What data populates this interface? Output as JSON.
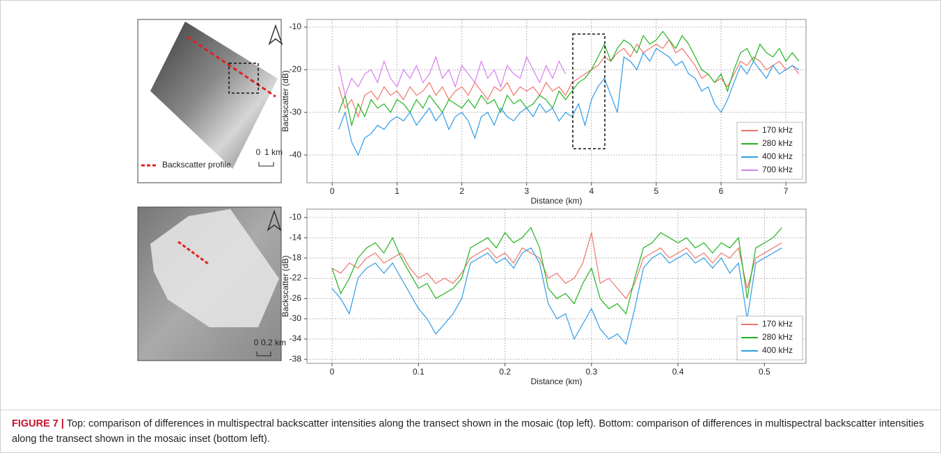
{
  "figure": {
    "caption_label": "FIGURE 7 |",
    "caption": "Top: comparison of differences in multispectral backscatter intensities along the transect shown in the mosaic (top left). Bottom: comparison of differences in multispectral backscatter intensities along the transect shown in the mosaic inset (bottom left).",
    "mosaics": [
      {
        "legend": "Backscatter profile",
        "scale_zero": "0",
        "scale_label": "1 km"
      },
      {
        "scale_zero": "0",
        "scale_label": "0.2 km"
      }
    ]
  },
  "chart_data": [
    {
      "type": "line",
      "x_label": "Distance (km)",
      "y_label": "Backscatter (dB)",
      "xlim": [
        -0.39,
        7.31
      ],
      "ylim": [
        -46.5,
        -8.2
      ],
      "xticks": [
        0,
        1,
        2,
        3,
        4,
        5,
        6,
        7
      ],
      "yticks": [
        -10,
        -20,
        -30,
        -40
      ],
      "grid": true,
      "legend": "lower right",
      "x": [
        0.1,
        0.2,
        0.3,
        0.4,
        0.5,
        0.6,
        0.7,
        0.8,
        0.9,
        1.0,
        1.1,
        1.2,
        1.3,
        1.4,
        1.5,
        1.6,
        1.7,
        1.8,
        1.9,
        2.0,
        2.1,
        2.2,
        2.3,
        2.4,
        2.5,
        2.6,
        2.7,
        2.8,
        2.9,
        3.0,
        3.1,
        3.2,
        3.3,
        3.4,
        3.5,
        3.6,
        3.7,
        3.8,
        3.9,
        4.0,
        4.1,
        4.2,
        4.3,
        4.4,
        4.5,
        4.6,
        4.7,
        4.8,
        4.9,
        5.0,
        5.1,
        5.2,
        5.3,
        5.4,
        5.5,
        5.6,
        5.7,
        5.8,
        5.9,
        6.0,
        6.1,
        6.2,
        6.3,
        6.4,
        6.5,
        6.6,
        6.7,
        6.8,
        6.9,
        7.0,
        7.1,
        7.2
      ],
      "series": [
        {
          "name": "170 kHz",
          "color": "#f0756a",
          "values": [
            -24,
            -29,
            -27,
            -31,
            -26,
            -25,
            -27,
            -24,
            -26,
            -25,
            -27,
            -24,
            -26,
            -25,
            -23,
            -26,
            -24,
            -27,
            -25,
            -24,
            -26,
            -23,
            -25,
            -27,
            -24,
            -25,
            -23,
            -26,
            -24,
            -25,
            -24,
            -26,
            -23,
            -25,
            -24,
            -26,
            -23,
            -22,
            -21,
            -20,
            -19,
            -17,
            -18,
            -16,
            -15,
            -17,
            -14,
            -16,
            -15,
            -14,
            -15,
            -13,
            -16,
            -15,
            -17,
            -19,
            -22,
            -21,
            -23,
            -22,
            -24,
            -21,
            -18,
            -19,
            -17,
            -18,
            -20,
            -19,
            -18,
            -20,
            -19,
            -21
          ]
        },
        {
          "name": "280 kHz",
          "color": "#1fb41f",
          "values": [
            -30,
            -26,
            -33,
            -28,
            -31,
            -27,
            -29,
            -28,
            -30,
            -27,
            -28,
            -30,
            -27,
            -29,
            -26,
            -28,
            -30,
            -27,
            -28,
            -29,
            -27,
            -29,
            -26,
            -28,
            -27,
            -30,
            -26,
            -28,
            -27,
            -29,
            -28,
            -26,
            -27,
            -29,
            -25,
            -27,
            -25,
            -23,
            -22,
            -20,
            -17,
            -14,
            -18,
            -15,
            -13,
            -14,
            -16,
            -12,
            -14,
            -13,
            -11,
            -13,
            -15,
            -12,
            -14,
            -17,
            -20,
            -21,
            -23,
            -21,
            -25,
            -20,
            -16,
            -15,
            -18,
            -14,
            -16,
            -17,
            -15,
            -18,
            -16,
            -18
          ]
        },
        {
          "name": "400 kHz",
          "color": "#2e9be8",
          "values": [
            -34,
            -30,
            -37,
            -40,
            -36,
            -35,
            -33,
            -34,
            -32,
            -31,
            -32,
            -30,
            -33,
            -31,
            -29,
            -32,
            -30,
            -34,
            -31,
            -30,
            -32,
            -36,
            -31,
            -30,
            -33,
            -29,
            -31,
            -32,
            -30,
            -29,
            -31,
            -28,
            -30,
            -29,
            -32,
            -30,
            -31,
            -28,
            -33,
            -27,
            -24,
            -22,
            -26,
            -30,
            -17,
            -18,
            -20,
            -16,
            -18,
            -15,
            -16,
            -17,
            -19,
            -18,
            -21,
            -22,
            -25,
            -24,
            -28,
            -30,
            -27,
            -23,
            -19,
            -21,
            -18,
            -20,
            -22,
            -19,
            -21,
            -20,
            -19,
            -20
          ]
        },
        {
          "name": "700 kHz",
          "color": "#d67ef0",
          "values": [
            -19,
            -26,
            -22,
            -24,
            -21,
            -20,
            -23,
            -18,
            -22,
            -24,
            -20,
            -22,
            -19,
            -23,
            -21,
            -17,
            -22,
            -20,
            -24,
            -19,
            -21,
            -23,
            -18,
            -22,
            -20,
            -24,
            -19,
            -21,
            -22,
            -17,
            -20,
            -23,
            -19,
            -22,
            -18,
            -21,
            null,
            null,
            null,
            null,
            null,
            null,
            null,
            null,
            null,
            null,
            null,
            null,
            null,
            null,
            null,
            null,
            null,
            null,
            null,
            null,
            null,
            null,
            null,
            null,
            null,
            null,
            null,
            null,
            null,
            null,
            null,
            null,
            null,
            null,
            null,
            null
          ]
        }
      ]
    },
    {
      "type": "line",
      "x_label": "Distance (km)",
      "y_label": "Backscatter (dB)",
      "xlim": [
        -0.029,
        0.548
      ],
      "ylim": [
        -38.8,
        -8.35
      ],
      "xticks": [
        0,
        0.1,
        0.2,
        0.3,
        0.4,
        0.5
      ],
      "yticks": [
        -10,
        -14,
        -18,
        -22,
        -26,
        -30,
        -34,
        -38
      ],
      "grid": true,
      "legend": "lower right",
      "x": [
        0,
        0.01,
        0.02,
        0.03,
        0.04,
        0.05,
        0.06,
        0.07,
        0.08,
        0.09,
        0.1,
        0.11,
        0.12,
        0.13,
        0.14,
        0.15,
        0.16,
        0.17,
        0.18,
        0.19,
        0.2,
        0.21,
        0.22,
        0.23,
        0.24,
        0.25,
        0.26,
        0.27,
        0.28,
        0.29,
        0.3,
        0.31,
        0.32,
        0.33,
        0.34,
        0.35,
        0.36,
        0.37,
        0.38,
        0.39,
        0.4,
        0.41,
        0.42,
        0.43,
        0.44,
        0.45,
        0.46,
        0.47,
        0.48,
        0.49,
        0.5,
        0.51,
        0.52
      ],
      "series": [
        {
          "name": "170 kHz",
          "color": "#f0756a",
          "values": [
            -20,
            -21,
            -19,
            -20,
            -18,
            -17,
            -19,
            -18,
            -17,
            -20,
            -22,
            -21,
            -23,
            -22,
            -23,
            -21,
            -18,
            -17,
            -16,
            -18,
            -17,
            -19,
            -16,
            -17,
            -18,
            -22,
            -21,
            -23,
            -22,
            -19,
            -13,
            -23,
            -22,
            -24,
            -26,
            -23,
            -18,
            -17,
            -16,
            -18,
            -17,
            -16,
            -18,
            -17,
            -19,
            -17,
            -18,
            -16,
            -24,
            -18,
            -17,
            -16,
            -15
          ]
        },
        {
          "name": "280 kHz",
          "color": "#1fb41f",
          "values": [
            -20,
            -25,
            -22,
            -18,
            -16,
            -15,
            -17,
            -14,
            -18,
            -21,
            -24,
            -23,
            -26,
            -25,
            -24,
            -22,
            -16,
            -15,
            -14,
            -16,
            -13,
            -15,
            -14,
            -12,
            -16,
            -24,
            -26,
            -25,
            -27,
            -23,
            -20,
            -26,
            -28,
            -27,
            -29,
            -22,
            -16,
            -15,
            -13,
            -14,
            -15,
            -14,
            -16,
            -15,
            -17,
            -15,
            -16,
            -14,
            -26,
            -16,
            -15,
            -14,
            -12
          ]
        },
        {
          "name": "400 kHz",
          "color": "#2e9be8",
          "values": [
            -24,
            -26,
            -29,
            -22,
            -20,
            -19,
            -21,
            -19,
            -22,
            -25,
            -28,
            -30,
            -33,
            -31,
            -29,
            -26,
            -19,
            -18,
            -17,
            -19,
            -18,
            -20,
            -17,
            -16,
            -19,
            -27,
            -30,
            -29,
            -34,
            -31,
            -28,
            -32,
            -34,
            -33,
            -35,
            -28,
            -20,
            -18,
            -17,
            -19,
            -18,
            -17,
            -19,
            -18,
            -20,
            -18,
            -21,
            -19,
            -30,
            -19,
            -18,
            -17,
            -16
          ]
        }
      ]
    }
  ]
}
